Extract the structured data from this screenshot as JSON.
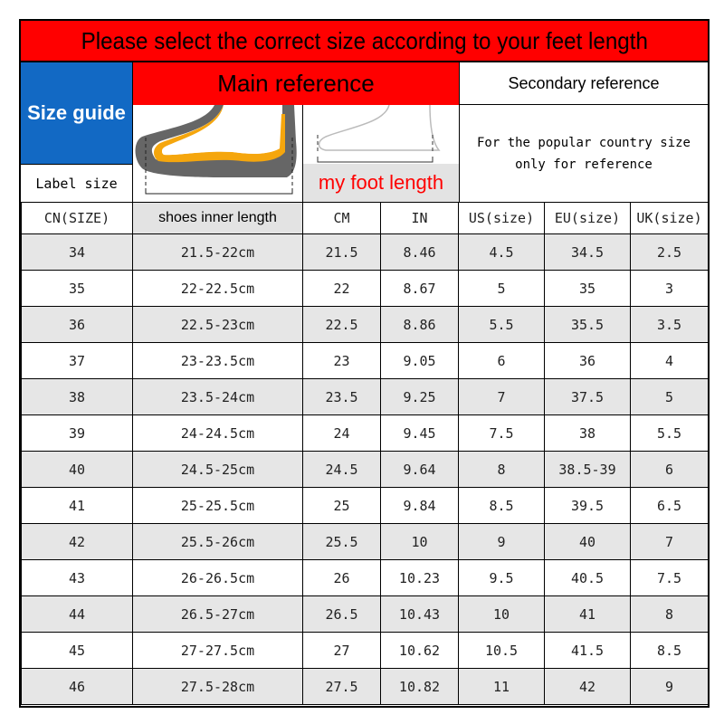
{
  "title": "Please select the correct size according to your feet length",
  "size_guide": "Size guide",
  "label_size": "Label size",
  "main_reference": "Main reference",
  "secondary_reference": "Secondary reference",
  "my_foot_length": "my foot length",
  "popular_note": "For the popular country size only for reference",
  "headers": [
    "CN(SIZE)",
    "shoes inner length",
    "CM",
    "IN",
    "US(size)",
    "EU(size)",
    "UK(size)"
  ],
  "rows": [
    [
      "34",
      "21.5-22cm",
      "21.5",
      "8.46",
      "4.5",
      "34.5",
      "2.5"
    ],
    [
      "35",
      "22-22.5cm",
      "22",
      "8.67",
      "5",
      "35",
      "3"
    ],
    [
      "36",
      "22.5-23cm",
      "22.5",
      "8.86",
      "5.5",
      "35.5",
      "3.5"
    ],
    [
      "37",
      "23-23.5cm",
      "23",
      "9.05",
      "6",
      "36",
      "4"
    ],
    [
      "38",
      "23.5-24cm",
      "23.5",
      "9.25",
      "7",
      "37.5",
      "5"
    ],
    [
      "39",
      "24-24.5cm",
      "24",
      "9.45",
      "7.5",
      "38",
      "5.5"
    ],
    [
      "40",
      "24.5-25cm",
      "24.5",
      "9.64",
      "8",
      "38.5-39",
      "6"
    ],
    [
      "41",
      "25-25.5cm",
      "25",
      "9.84",
      "8.5",
      "39.5",
      "6.5"
    ],
    [
      "42",
      "25.5-26cm",
      "25.5",
      "10",
      "9",
      "40",
      "7"
    ],
    [
      "43",
      "26-26.5cm",
      "26",
      "10.23",
      "9.5",
      "40.5",
      "7.5"
    ],
    [
      "44",
      "26.5-27cm",
      "26.5",
      "10.43",
      "10",
      "41",
      "8"
    ],
    [
      "45",
      "27-27.5cm",
      "27",
      "10.62",
      "10.5",
      "41.5",
      "8.5"
    ],
    [
      "46",
      "27.5-28cm",
      "27.5",
      "10.82",
      "11",
      "42",
      "9"
    ]
  ]
}
